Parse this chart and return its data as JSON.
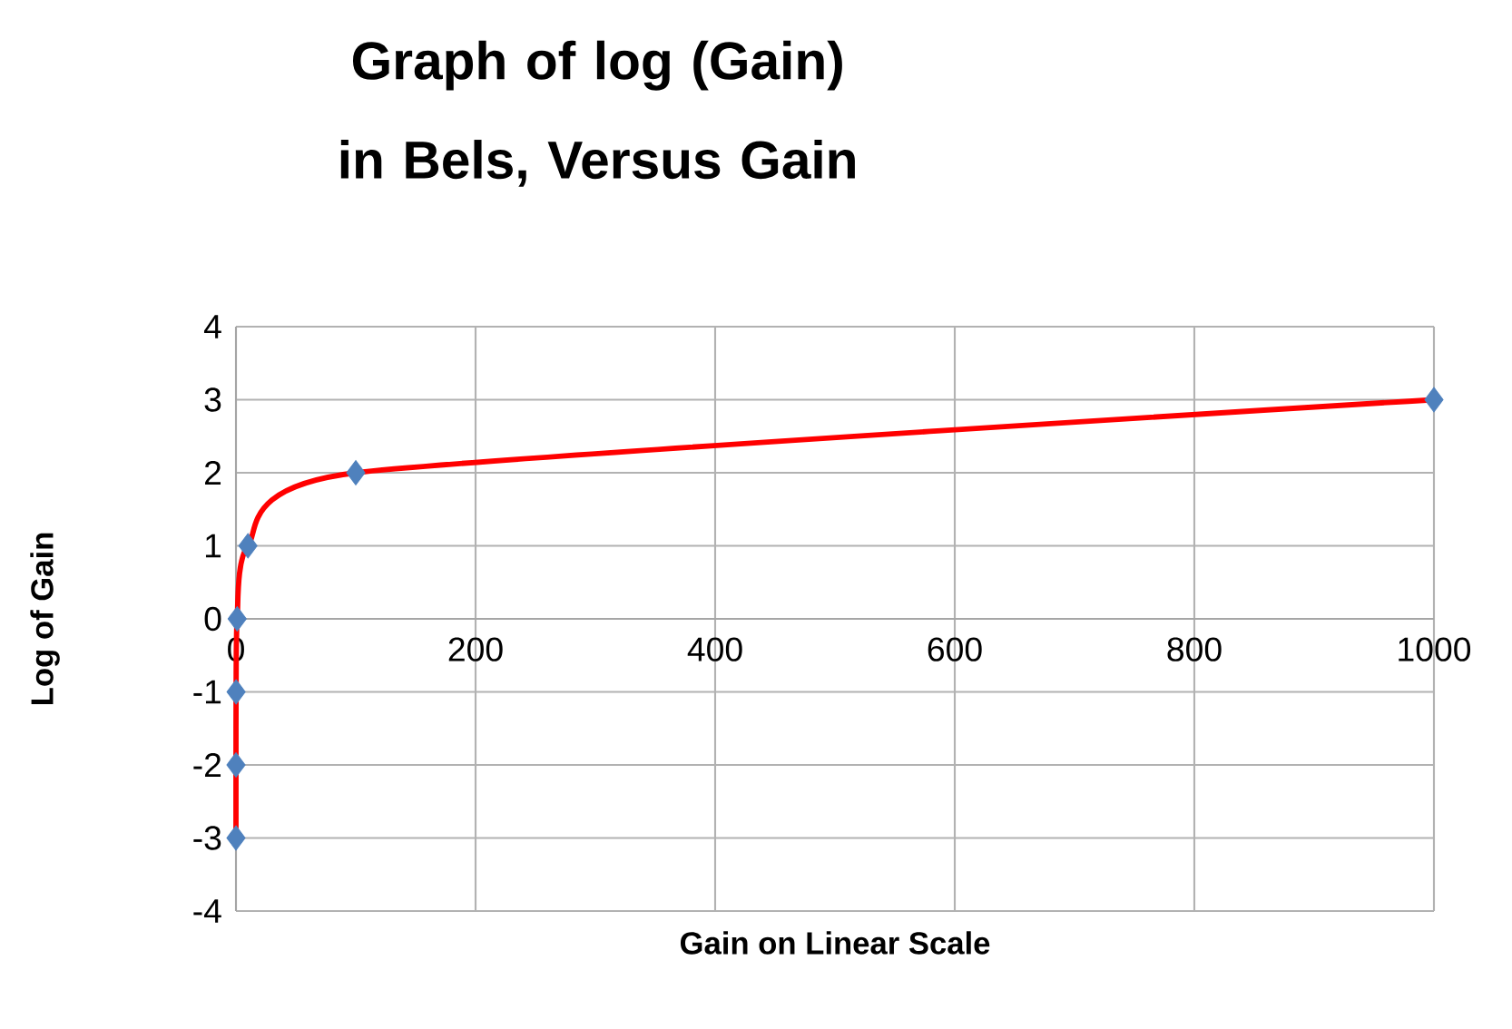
{
  "chart_data": {
    "type": "line",
    "title": "Graph of log (Gain) in Bels, Versus   Gain",
    "xlabel": "Gain on Linear Scale",
    "ylabel": "Log of Gain",
    "series": [
      {
        "color": "#ff0000",
        "x": [
          0.001,
          0.01,
          0.1,
          1,
          10,
          100,
          1000
        ],
        "values": [
          -3,
          -2,
          -1,
          0,
          1,
          2,
          3
        ]
      }
    ],
    "xlim": [
      0,
      1000
    ],
    "ylim": [
      -4,
      4
    ],
    "xticks": [
      0,
      200,
      400,
      600,
      800,
      1000
    ],
    "yticks": [
      -4,
      -3,
      -2,
      -1,
      0,
      1,
      2,
      3,
      4
    ],
    "grid": true,
    "marker": "diamond",
    "line_style": "solid"
  }
}
